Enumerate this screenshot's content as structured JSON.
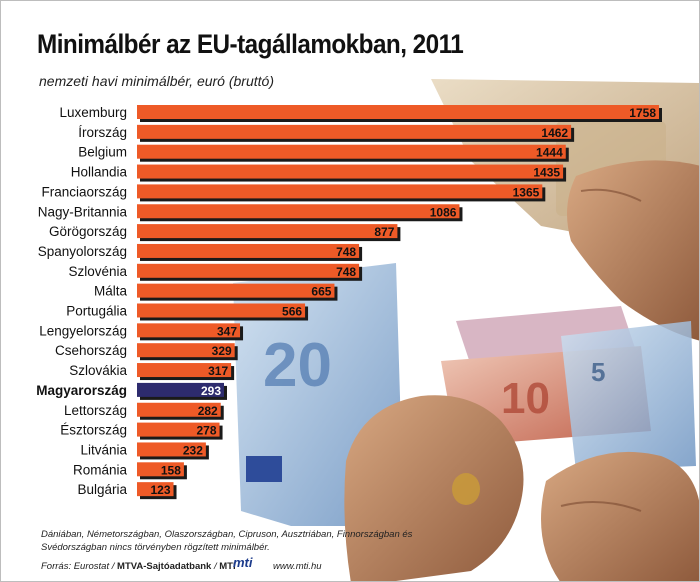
{
  "title": "Minimálbér az EU-tagállamokban, 2011",
  "subtitle": "nemzeti havi minimálbér, euró (bruttó)",
  "footnote": "Dániában, Németországban, Olaszországban, Cipruson, Ausztriában, Finnországban és Svédországban nincs törvényben rögzített minimálbér.",
  "source": {
    "prefix": "Forrás: Eurostat / ",
    "agency": "MTVA-Sajtóadatbank",
    "sep": " / ",
    "mti": "MTI",
    "logo": "mti",
    "site": "www.mti.hu"
  },
  "colors": {
    "bar": "#ee5a27",
    "bar_highlight": "#2d2b6e",
    "shadow": "#1a1a1a"
  },
  "chart_data": {
    "type": "bar",
    "orientation": "horizontal",
    "title": "Minimálbér az EU-tagállamokban, 2011",
    "subtitle": "nemzeti havi minimálbér, euró (bruttó)",
    "xlim": [
      0,
      1758
    ],
    "grid": false,
    "highlight": "Magyarország",
    "categories": [
      "Luxemburg",
      "Írország",
      "Belgium",
      "Hollandia",
      "Franciaország",
      "Nagy-Britannia",
      "Görögország",
      "Spanyolország",
      "Szlovénia",
      "Málta",
      "Portugália",
      "Lengyelország",
      "Csehország",
      "Szlovákia",
      "Magyarország",
      "Lettország",
      "Észtország",
      "Litvánia",
      "Románia",
      "Bulgária"
    ],
    "values": [
      1758,
      1462,
      1444,
      1435,
      1365,
      1086,
      877,
      748,
      748,
      665,
      566,
      347,
      329,
      317,
      293,
      282,
      278,
      232,
      158,
      123
    ]
  }
}
